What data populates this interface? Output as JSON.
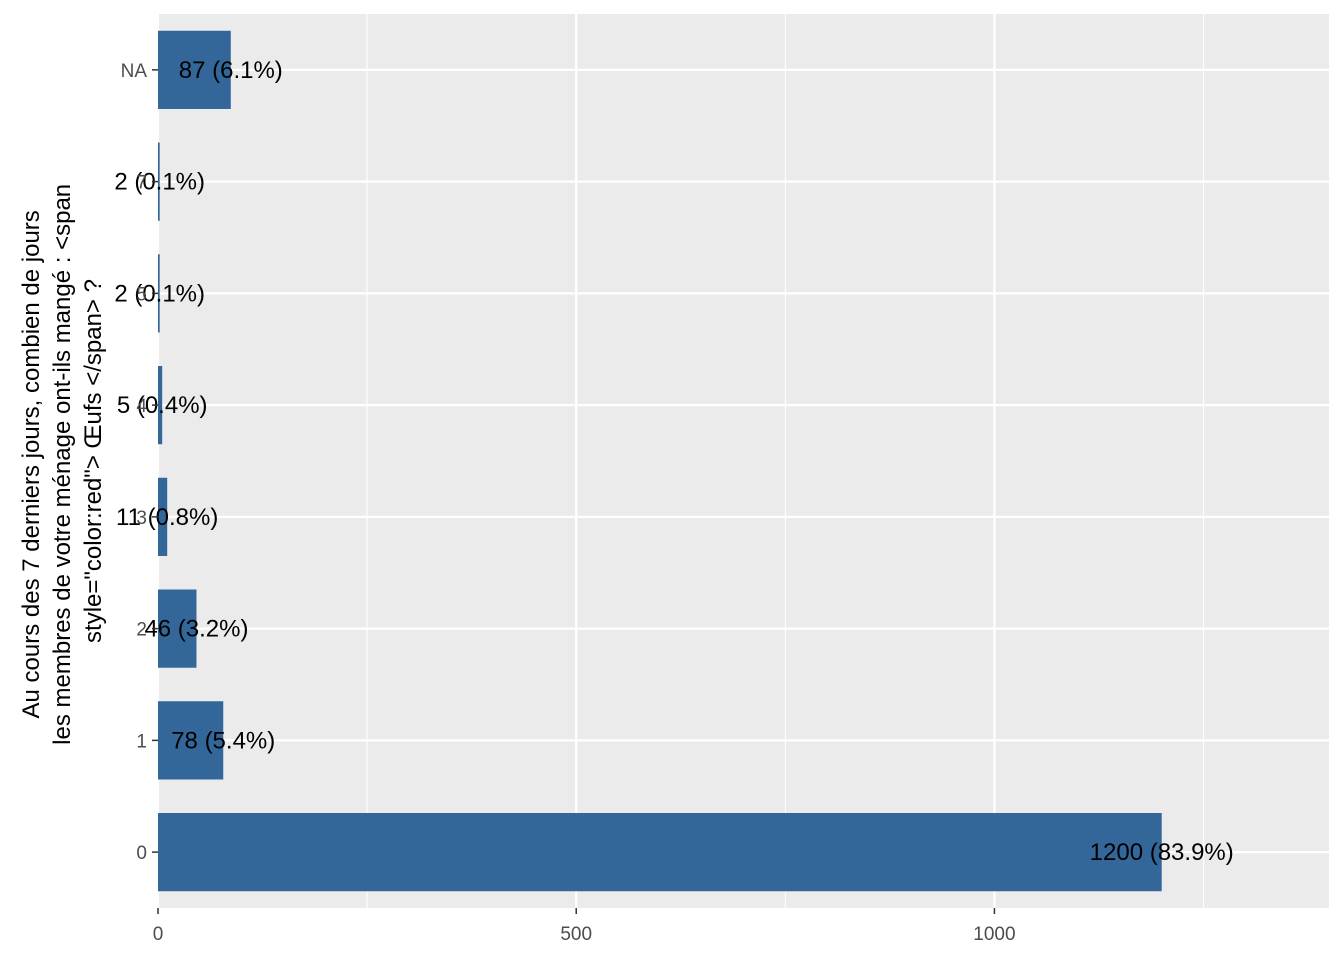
{
  "chart_data": {
    "type": "bar",
    "orientation": "horizontal",
    "ylabel_lines": [
      "Au cours des 7 derniers jours, combien de jours",
      "les membres de votre ménage ont-ils mangé : <span",
      "style=\"color:red\"> Œufs </span> ?"
    ],
    "xlabel": "",
    "categories": [
      "0",
      "1",
      "2",
      "3",
      "4",
      "5",
      "7",
      "NA"
    ],
    "values": [
      1200,
      78,
      46,
      11,
      5,
      2,
      2,
      87
    ],
    "data_labels": [
      "1200 (83.9%)",
      "78 (5.4%)",
      "46 (3.2%)",
      "11 (0.8%)",
      "5 (0.4%)",
      "2 (0.1%)",
      "2 (0.1%)",
      "87 (6.1%)"
    ],
    "x_ticks": [
      0,
      500,
      1000
    ],
    "xlim": [
      0,
      1400
    ],
    "grid": true,
    "bar_color": "#336699",
    "panel_color": "#EBEBEB",
    "grid_color": "#FFFFFF"
  }
}
